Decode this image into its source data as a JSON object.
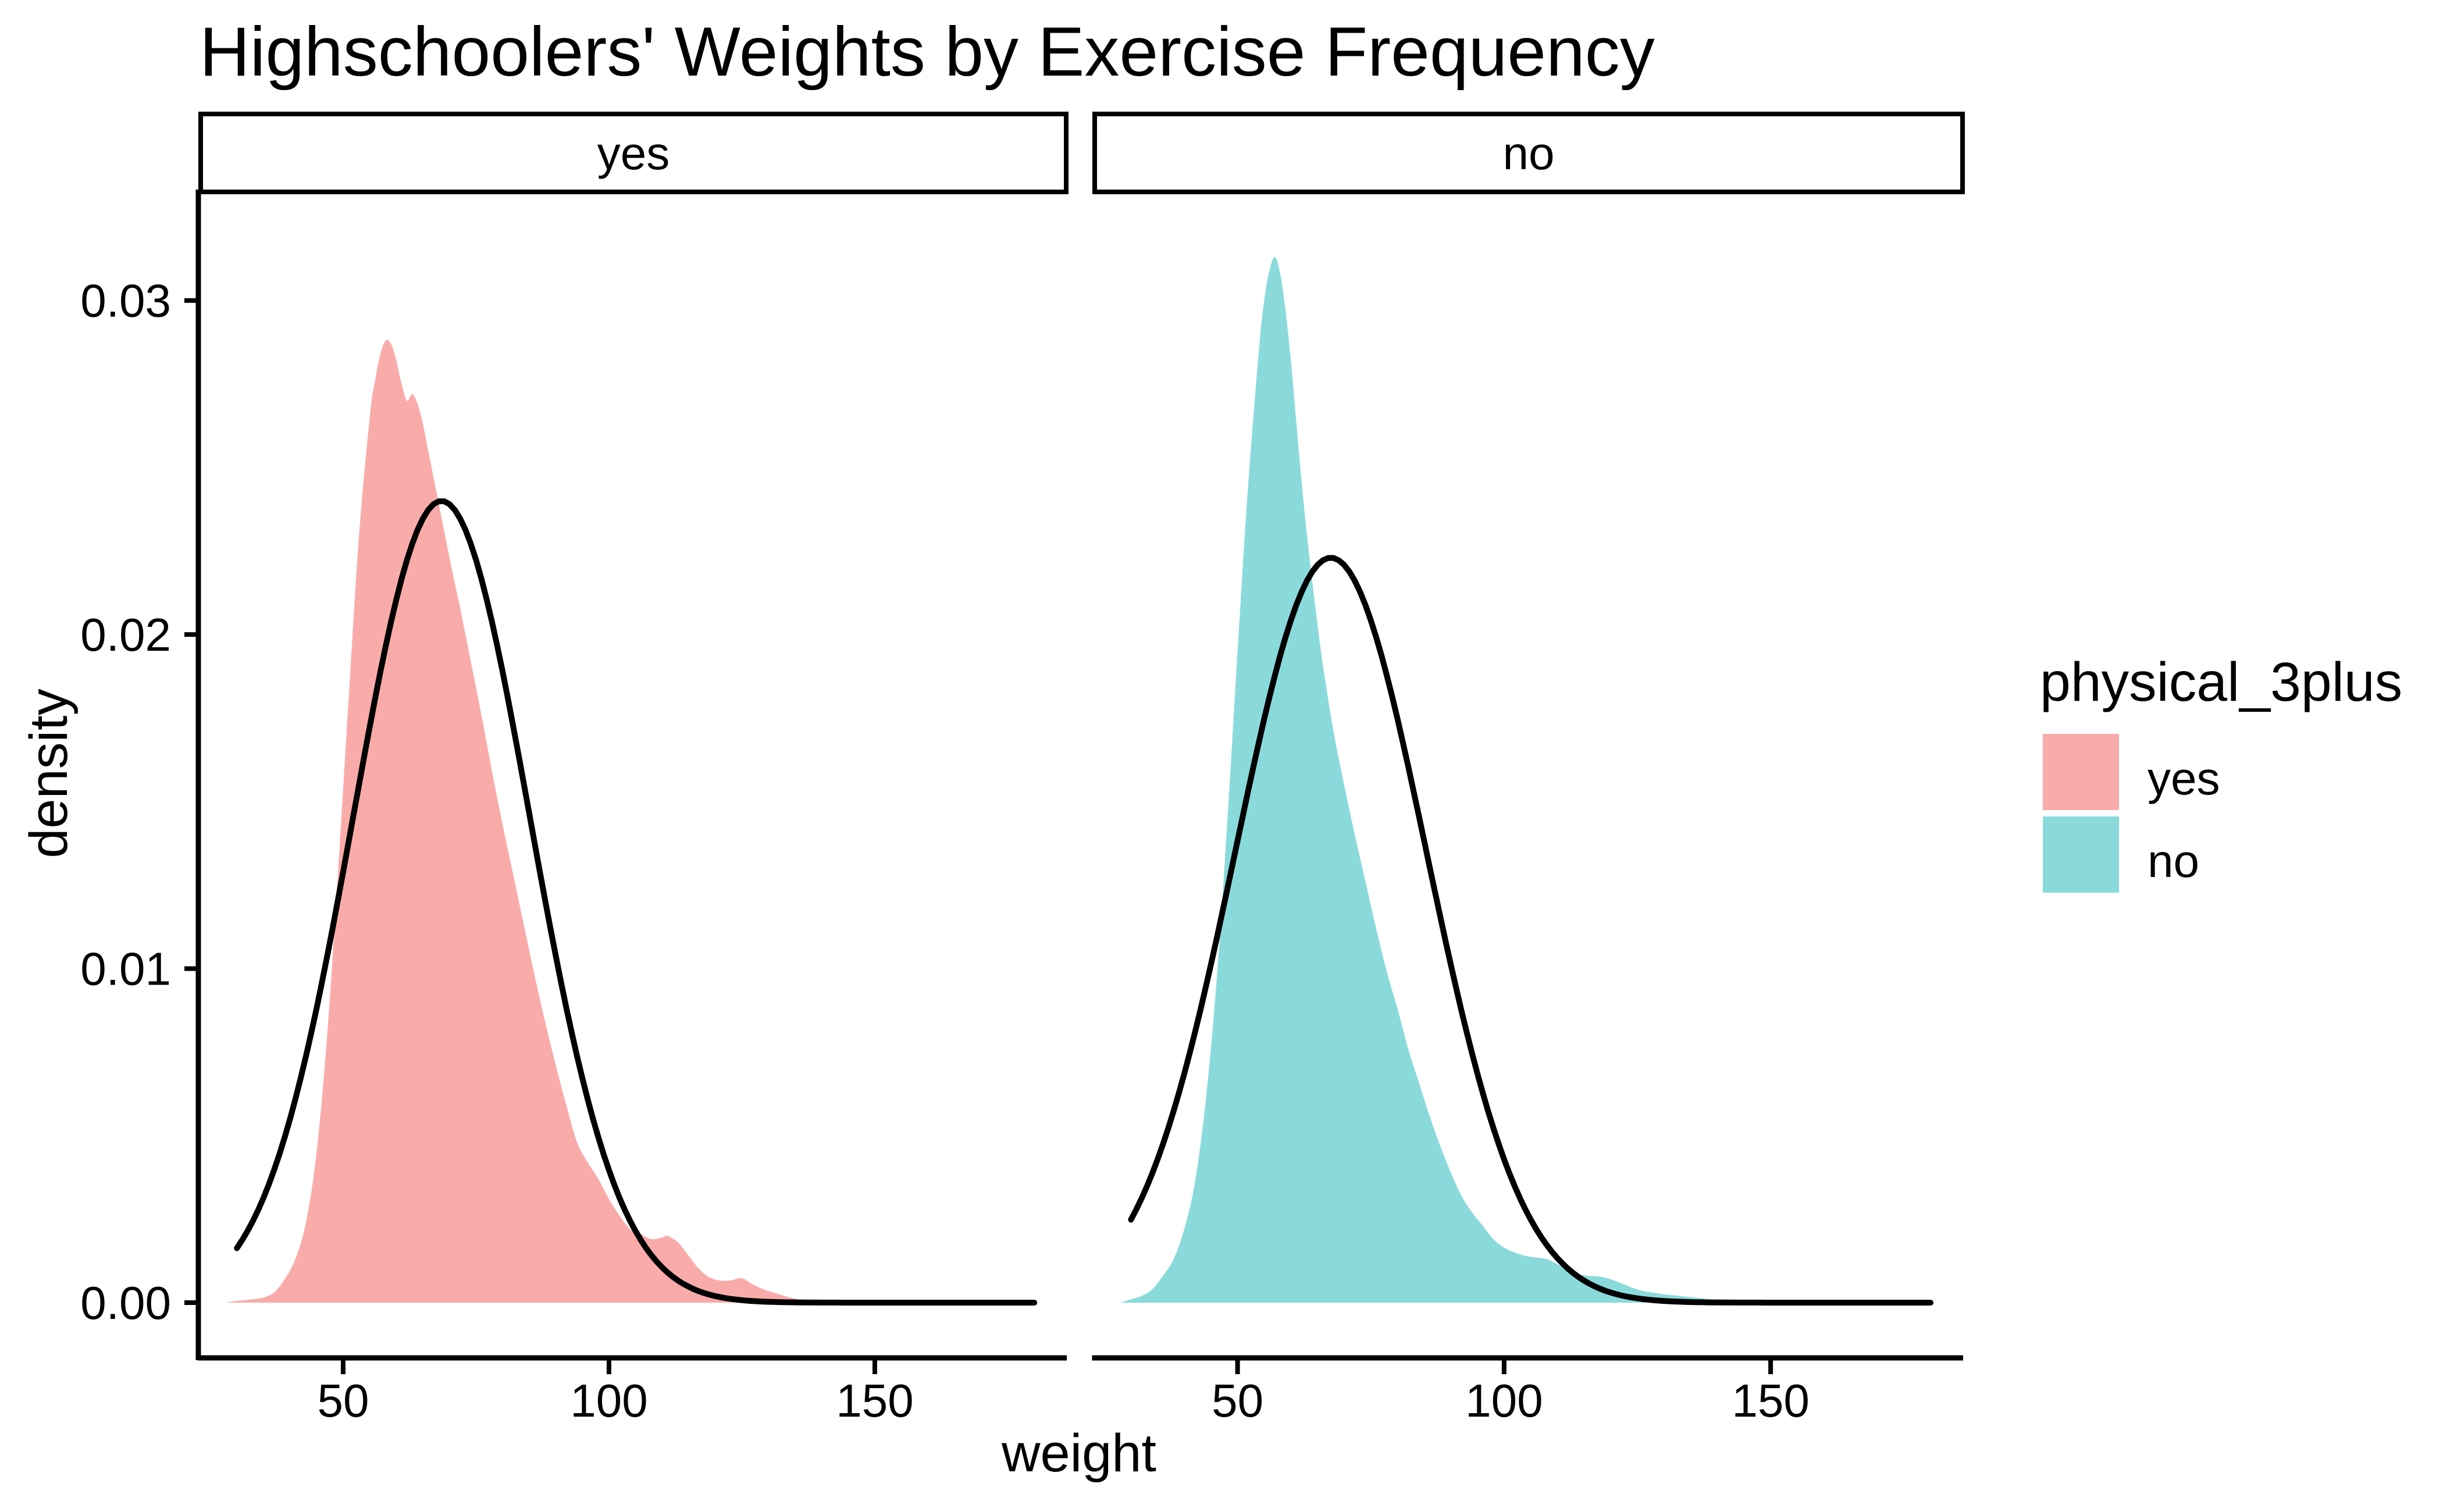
{
  "title": "Highschoolers' Weights by Exercise Frequency",
  "axes": {
    "x_title": "weight",
    "y_title": "density",
    "x_tick_labels": [
      "50",
      "100",
      "150"
    ],
    "y_tick_labels": [
      "0.00",
      "0.01",
      "0.02",
      "0.03"
    ]
  },
  "legend": {
    "title": "physical_3plus",
    "items": [
      {
        "label": "yes",
        "color": "#F9ABAA"
      },
      {
        "label": "no",
        "color": "#8ADADB"
      }
    ]
  },
  "colors": {
    "fill_yes": "#F9ABAA",
    "fill_no": "#8ADADB",
    "normal_curve": "#000000",
    "axis": "#000000",
    "background": "#ffffff"
  },
  "chart_data": {
    "type": "area",
    "subtype": "faceted-kernel-density-with-normal-overlay",
    "title": "Highschoolers' Weights by Exercise Frequency",
    "xlabel": "weight",
    "ylabel": "density",
    "facet_variable": "physical_3plus",
    "legend_position": "right",
    "grid": false,
    "x_tick_values": [
      50,
      100,
      150
    ],
    "y_tick_values": [
      0,
      0.01,
      0.02,
      0.03
    ],
    "xlim": [
      23.2,
      186
    ],
    "ylim": [
      -0.0016,
      0.03325
    ],
    "data_x_range": [
      30,
      180
    ],
    "facets": [
      {
        "label": "yes",
        "fill": "#F9ABAA",
        "density_peak": {
          "x": 58,
          "y": 0.0288
        },
        "normal": {
          "mean": 68.5,
          "sd": 16.6,
          "peak": 0.024
        },
        "density": [
          [
            28,
            0
          ],
          [
            30,
            5e-05
          ],
          [
            33,
            0.0001
          ],
          [
            35,
            0.00015
          ],
          [
            37,
            0.0003
          ],
          [
            39,
            0.0007
          ],
          [
            41,
            0.0013
          ],
          [
            43,
            0.0024
          ],
          [
            45,
            0.0045
          ],
          [
            47,
            0.008
          ],
          [
            49,
            0.0128
          ],
          [
            51,
            0.018
          ],
          [
            53,
            0.023
          ],
          [
            55,
            0.0265
          ],
          [
            56,
            0.0276
          ],
          [
            57,
            0.0284
          ],
          [
            58,
            0.0288
          ],
          [
            59,
            0.0287
          ],
          [
            60,
            0.0282
          ],
          [
            61,
            0.0275
          ],
          [
            62,
            0.027
          ],
          [
            63,
            0.0272
          ],
          [
            64,
            0.0269
          ],
          [
            65,
            0.0263
          ],
          [
            66,
            0.0255
          ],
          [
            68,
            0.0239
          ],
          [
            70,
            0.0223
          ],
          [
            72,
            0.0208
          ],
          [
            74,
            0.0192
          ],
          [
            76,
            0.0176
          ],
          [
            78,
            0.0159
          ],
          [
            80,
            0.0143
          ],
          [
            82,
            0.0128
          ],
          [
            84,
            0.0113
          ],
          [
            86,
            0.0098
          ],
          [
            88,
            0.0084
          ],
          [
            90,
            0.0071
          ],
          [
            92,
            0.0059
          ],
          [
            94,
            0.0048
          ],
          [
            96,
            0.0042
          ],
          [
            98,
            0.0037
          ],
          [
            100,
            0.0031
          ],
          [
            102,
            0.0026
          ],
          [
            104,
            0.0022
          ],
          [
            106,
            0.00205
          ],
          [
            108,
            0.0019
          ],
          [
            110,
            0.00195
          ],
          [
            111,
            0.002
          ],
          [
            113,
            0.0018
          ],
          [
            115,
            0.0014
          ],
          [
            117,
            0.001
          ],
          [
            119,
            0.00075
          ],
          [
            121,
            0.00066
          ],
          [
            123,
            0.00067
          ],
          [
            125,
            0.00073
          ],
          [
            127,
            0.00055
          ],
          [
            129,
            0.0004
          ],
          [
            131,
            0.0003
          ],
          [
            133,
            0.0002
          ],
          [
            135,
            0.00012
          ],
          [
            137,
            6e-05
          ],
          [
            139,
            4e-05
          ],
          [
            141,
            4e-05
          ],
          [
            143,
            5e-05
          ],
          [
            145,
            6e-05
          ],
          [
            147,
            3e-05
          ],
          [
            149,
            0
          ]
        ]
      },
      {
        "label": "no",
        "fill": "#8ADADB",
        "density_peak": {
          "x": 57,
          "y": 0.0313
        },
        "normal": {
          "mean": 67.5,
          "sd": 17.9,
          "peak": 0.0223
        },
        "density": [
          [
            28,
            0
          ],
          [
            30,
            0.0001
          ],
          [
            32,
            0.0002
          ],
          [
            34,
            0.0004
          ],
          [
            36,
            0.0008
          ],
          [
            38,
            0.0013
          ],
          [
            40,
            0.0022
          ],
          [
            42,
            0.0036
          ],
          [
            44,
            0.006
          ],
          [
            46,
            0.0095
          ],
          [
            48,
            0.0142
          ],
          [
            50,
            0.0195
          ],
          [
            52,
            0.0245
          ],
          [
            54,
            0.0285
          ],
          [
            55,
            0.03
          ],
          [
            56,
            0.0309
          ],
          [
            57,
            0.0313
          ],
          [
            58,
            0.0308
          ],
          [
            59,
            0.0297
          ],
          [
            60,
            0.0282
          ],
          [
            61,
            0.0264
          ],
          [
            62,
            0.0246
          ],
          [
            63,
            0.023
          ],
          [
            64,
            0.0216
          ],
          [
            65,
            0.0203
          ],
          [
            66,
            0.0191
          ],
          [
            68,
            0.0171
          ],
          [
            70,
            0.0155
          ],
          [
            72,
            0.014
          ],
          [
            74,
            0.0126
          ],
          [
            76,
            0.0112
          ],
          [
            78,
            0.0099
          ],
          [
            80,
            0.0088
          ],
          [
            82,
            0.0076
          ],
          [
            84,
            0.0066
          ],
          [
            86,
            0.0056
          ],
          [
            88,
            0.0047
          ],
          [
            90,
            0.0039
          ],
          [
            92,
            0.0032
          ],
          [
            94,
            0.0027
          ],
          [
            96,
            0.0023
          ],
          [
            98,
            0.0019
          ],
          [
            100,
            0.00165
          ],
          [
            102,
            0.0015
          ],
          [
            104,
            0.0014
          ],
          [
            106,
            0.00135
          ],
          [
            108,
            0.0013
          ],
          [
            110,
            0.00115
          ],
          [
            112,
            0.00095
          ],
          [
            114,
            0.00085
          ],
          [
            116,
            0.0008
          ],
          [
            118,
            0.00078
          ],
          [
            120,
            0.0007
          ],
          [
            122,
            0.00058
          ],
          [
            124,
            0.00045
          ],
          [
            126,
            0.00035
          ],
          [
            128,
            0.0003
          ],
          [
            130,
            0.00025
          ],
          [
            133,
            0.0002
          ],
          [
            136,
            0.00015
          ],
          [
            139,
            0.0001
          ],
          [
            142,
            8e-05
          ],
          [
            145,
            6e-05
          ],
          [
            148,
            5e-05
          ],
          [
            151,
            4e-05
          ],
          [
            154,
            5e-05
          ],
          [
            157,
            4e-05
          ],
          [
            160,
            2e-05
          ],
          [
            163,
            0
          ]
        ]
      }
    ]
  }
}
